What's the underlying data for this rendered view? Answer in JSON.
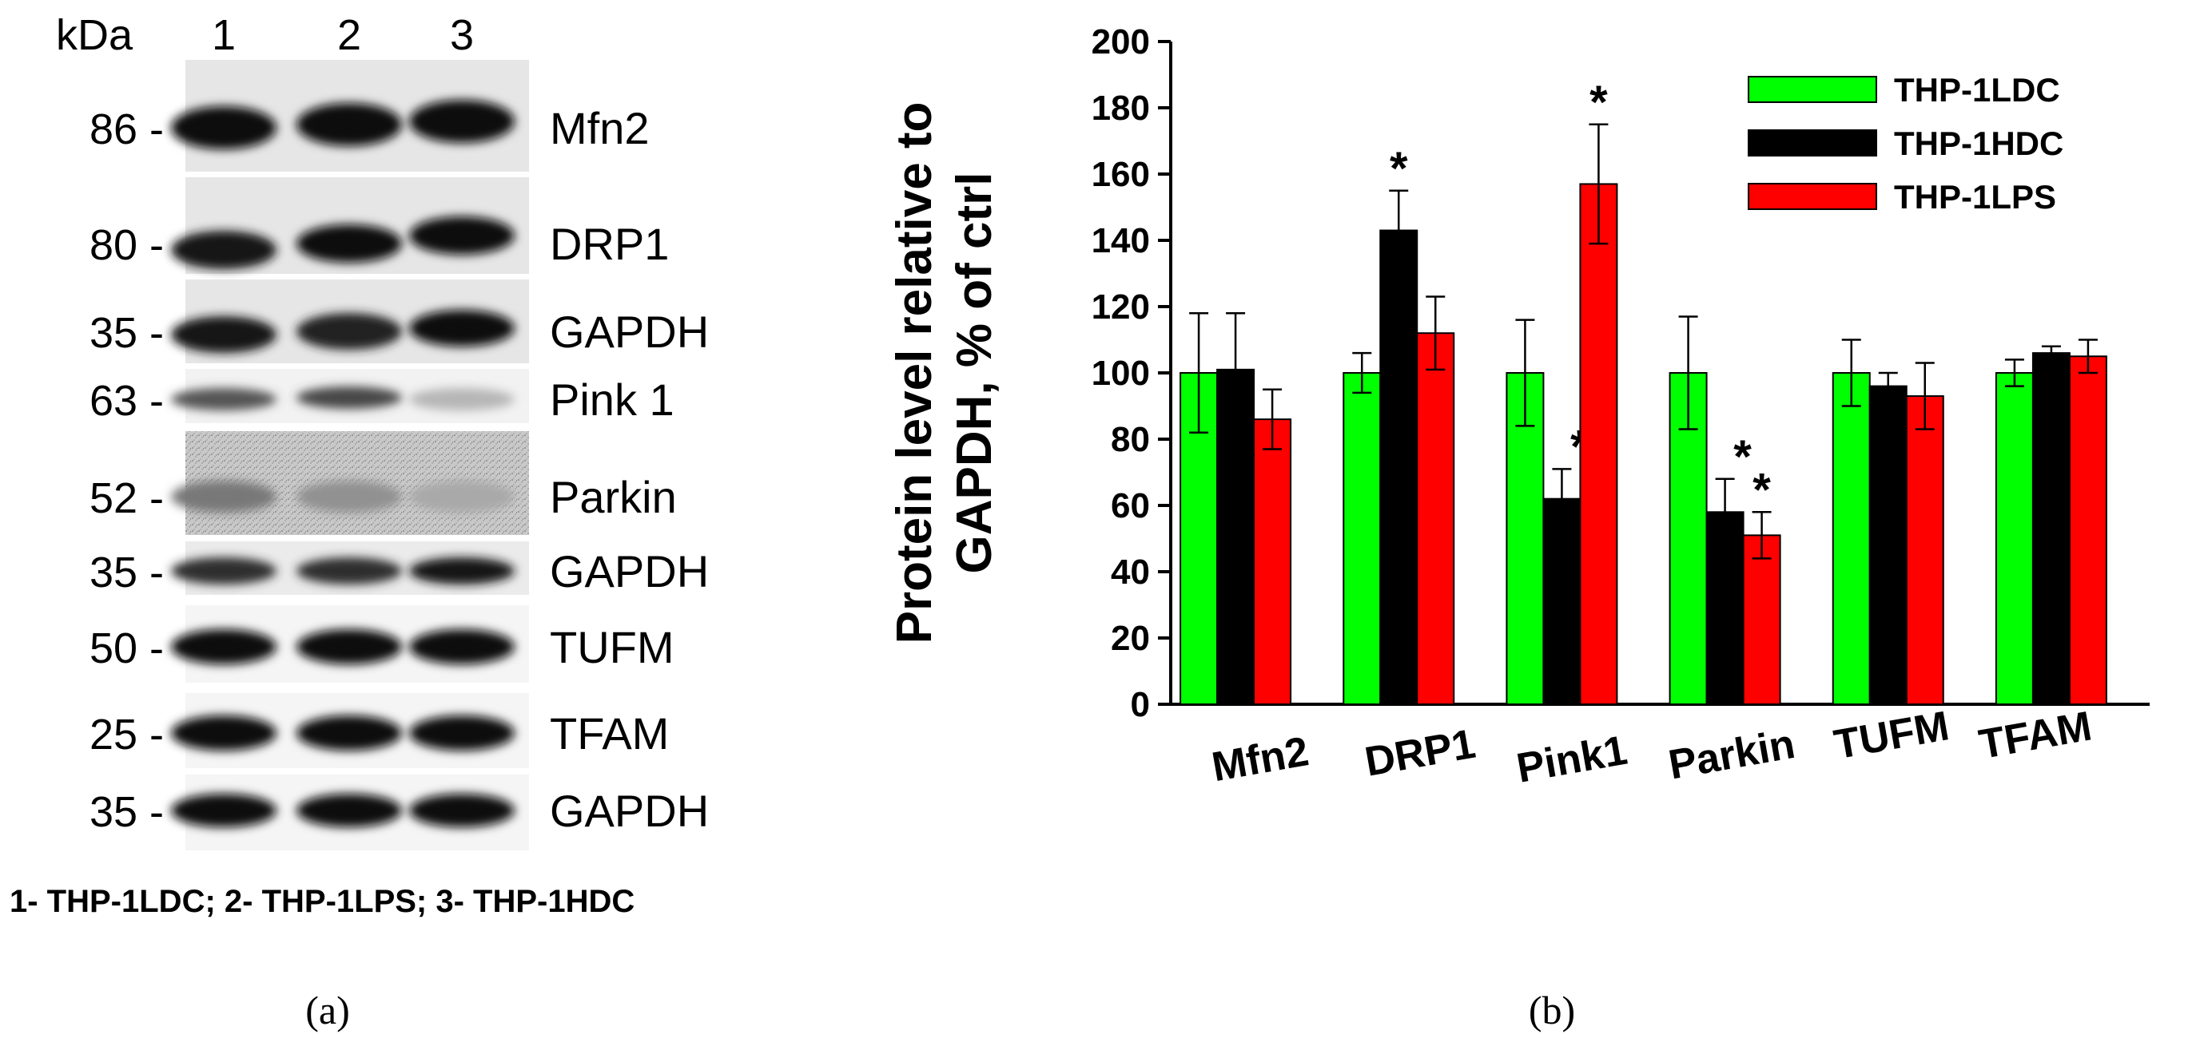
{
  "panel_a": {
    "kda_label": "kDa",
    "lanes": [
      "1",
      "2",
      "3"
    ],
    "rows": [
      {
        "kda": "86 -",
        "protein": "Mfn2",
        "band": [
          1.0,
          1.0,
          1.0
        ],
        "lane_shift": [
          0,
          -4,
          -8
        ],
        "bg": 0.9,
        "noise": false
      },
      {
        "kda": "80 -",
        "protein": "DRP1",
        "band": [
          0.95,
          1.0,
          1.0
        ],
        "lane_shift": [
          8,
          0,
          -10
        ],
        "bg": 0.9,
        "noise": false
      },
      {
        "kda": "35 -",
        "protein": "GAPDH",
        "band": [
          0.95,
          0.9,
          1.0
        ],
        "lane_shift": [
          4,
          0,
          -4
        ],
        "bg": 0.9,
        "noise": false
      },
      {
        "kda": "63 -",
        "protein": "Pink 1",
        "band": [
          0.7,
          0.75,
          0.3
        ],
        "lane_shift": [
          0,
          -2,
          0
        ],
        "bg": 0.95,
        "noise": false
      },
      {
        "kda": "52 -",
        "protein": "Parkin",
        "band": [
          0.55,
          0.45,
          0.35
        ],
        "lane_shift": [
          0,
          0,
          0
        ],
        "bg": 0.82,
        "noise": true
      },
      {
        "kda": "35 -",
        "protein": "GAPDH",
        "band": [
          0.85,
          0.85,
          0.95
        ],
        "lane_shift": [
          0,
          0,
          0
        ],
        "bg": 0.92,
        "noise": false
      },
      {
        "kda": "50 -",
        "protein": "TUFM",
        "band": [
          1.0,
          1.0,
          1.0
        ],
        "lane_shift": [
          0,
          0,
          0
        ],
        "bg": 0.96,
        "noise": false
      },
      {
        "kda": "25 -",
        "protein": "TFAM",
        "band": [
          1.0,
          1.0,
          1.0
        ],
        "lane_shift": [
          0,
          0,
          0
        ],
        "bg": 0.96,
        "noise": false
      },
      {
        "kda": "35 -",
        "protein": "GAPDH",
        "band": [
          1.0,
          1.0,
          1.0
        ],
        "lane_shift": [
          0,
          0,
          0
        ],
        "bg": 0.96,
        "noise": false
      }
    ],
    "legend": "1- THP-1LDC; 2- THP-1LPS; 3- THP-1HDC",
    "panel_label": "(a)"
  },
  "panel_b_label": "(b)",
  "chart_data": {
    "type": "bar",
    "title": "",
    "xlabel": "",
    "ylabel_line1": "Protein level relative to",
    "ylabel_line2": "GAPDH, % of ctrl",
    "ylim": [
      0,
      200
    ],
    "yticks": [
      0,
      20,
      40,
      60,
      80,
      100,
      120,
      140,
      160,
      180,
      200
    ],
    "categories": [
      "Mfn2",
      "DRP1",
      "Pink1",
      "Parkin",
      "TUFM",
      "TFAM"
    ],
    "series": [
      {
        "name": "THP-1LDC",
        "color": "#00ff00",
        "values": [
          100,
          100,
          100,
          100,
          100,
          100
        ],
        "errors": [
          18,
          6,
          16,
          17,
          10,
          4
        ],
        "significant": [
          false,
          false,
          false,
          false,
          false,
          false
        ]
      },
      {
        "name": "THP-1HDC",
        "color": "#000000",
        "values": [
          101,
          143,
          62,
          58,
          96,
          106
        ],
        "errors": [
          17,
          12,
          9,
          10,
          4,
          2
        ],
        "significant": [
          false,
          true,
          true,
          true,
          false,
          false
        ]
      },
      {
        "name": "THP-1LPS",
        "color": "#ff0000",
        "values": [
          86,
          112,
          157,
          51,
          93,
          105
        ],
        "errors": [
          9,
          11,
          18,
          7,
          10,
          5
        ],
        "significant": [
          false,
          false,
          true,
          true,
          false,
          false
        ]
      }
    ],
    "significance_marker": "*",
    "legend_position": "top-right"
  }
}
